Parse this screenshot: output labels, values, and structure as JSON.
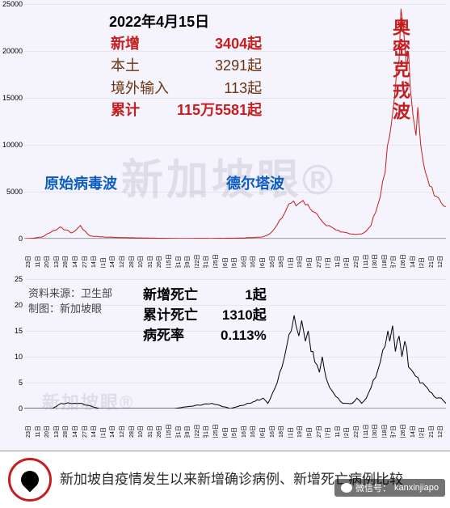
{
  "header": {
    "date": "2022年4月15日",
    "rows": [
      {
        "label": "新增",
        "value": "3404起",
        "class": "red"
      },
      {
        "label": "本土",
        "value": "3291起",
        "class": "brown"
      },
      {
        "label": "境外输入",
        "value": "113起",
        "class": "brown"
      },
      {
        "label": "累计",
        "value": "115万5581起",
        "class": "red"
      }
    ]
  },
  "deaths": {
    "rows": [
      {
        "label": "新增死亡",
        "value": "1起"
      },
      {
        "label": "累计死亡",
        "value": "1310起"
      },
      {
        "label": "病死率",
        "value": "0.113%"
      }
    ]
  },
  "source": {
    "line1": "资料来源：卫生部",
    "line2": "制图：新加坡眼"
  },
  "waves": {
    "original": "原始病毒波",
    "delta": "德尔塔波",
    "omicron": "奥密克戎波"
  },
  "watermark": "新加坡眼®",
  "footer": {
    "title": "新加坡自疫情发生以来新增确诊病例、新增死亡病例比较",
    "wechat_label": "微信号：",
    "wechat_id": "kanxinjiapo"
  },
  "top_chart": {
    "type": "line",
    "color": "#c41e1e",
    "linewidth": 1,
    "background": "#f5f3fc",
    "ylim": [
      0,
      25000
    ],
    "yticks": [
      0,
      5000,
      10000,
      15000,
      20000,
      25000
    ],
    "x_range_days": 450,
    "x_labels": [
      "1月23日",
      "2月11日",
      "2月20日",
      "3月13日",
      "3月28日",
      "4月14日",
      "4月27日",
      "5月14日",
      "6月1日",
      "6月14日",
      "7月12日",
      "7月28日",
      "8月10日",
      "8月31日",
      "9月26日",
      "10月15日",
      "11月1日",
      "11月9日",
      "11月22日",
      "12月1日",
      "12月25日",
      "1月6日",
      "2月5日",
      "2月16日",
      "3月16日",
      "4月6日",
      "4月16日",
      "5月18日",
      "6月1日",
      "6月19日",
      "7月5日",
      "7月27日",
      "8月7日",
      "8月11日",
      "9月2日",
      "9月22日",
      "10月11日",
      "10月30日",
      "11月18日",
      "12月7日",
      "12月26日",
      "1月14日",
      "2月2日",
      "2月21日",
      "3月12日",
      "3月31日"
    ],
    "data": [
      [
        0,
        0
      ],
      [
        10,
        50
      ],
      [
        20,
        200
      ],
      [
        30,
        800
      ],
      [
        40,
        1200
      ],
      [
        50,
        600
      ],
      [
        55,
        900
      ],
      [
        60,
        1400
      ],
      [
        65,
        800
      ],
      [
        70,
        300
      ],
      [
        80,
        200
      ],
      [
        90,
        150
      ],
      [
        100,
        120
      ],
      [
        110,
        100
      ],
      [
        120,
        80
      ],
      [
        130,
        60
      ],
      [
        140,
        50
      ],
      [
        150,
        40
      ],
      [
        160,
        30
      ],
      [
        170,
        25
      ],
      [
        180,
        30
      ],
      [
        190,
        35
      ],
      [
        200,
        30
      ],
      [
        210,
        40
      ],
      [
        220,
        50
      ],
      [
        230,
        60
      ],
      [
        240,
        100
      ],
      [
        250,
        150
      ],
      [
        255,
        200
      ],
      [
        260,
        400
      ],
      [
        265,
        800
      ],
      [
        270,
        1500
      ],
      [
        275,
        2200
      ],
      [
        280,
        3200
      ],
      [
        285,
        3800
      ],
      [
        290,
        3500
      ],
      [
        295,
        3900
      ],
      [
        300,
        3600
      ],
      [
        305,
        3200
      ],
      [
        310,
        2800
      ],
      [
        315,
        2200
      ],
      [
        320,
        1600
      ],
      [
        325,
        1400
      ],
      [
        330,
        1100
      ],
      [
        335,
        900
      ],
      [
        340,
        700
      ],
      [
        345,
        600
      ],
      [
        350,
        500
      ],
      [
        355,
        450
      ],
      [
        360,
        500
      ],
      [
        365,
        800
      ],
      [
        370,
        1400
      ],
      [
        375,
        2800
      ],
      [
        380,
        4500
      ],
      [
        385,
        7000
      ],
      [
        390,
        11000
      ],
      [
        395,
        15000
      ],
      [
        400,
        19000
      ],
      [
        402,
        24500
      ],
      [
        405,
        22000
      ],
      [
        408,
        18000
      ],
      [
        410,
        20000
      ],
      [
        412,
        16000
      ],
      [
        415,
        13000
      ],
      [
        418,
        11000
      ],
      [
        420,
        14000
      ],
      [
        423,
        10000
      ],
      [
        426,
        8000
      ],
      [
        430,
        6500
      ],
      [
        435,
        5500
      ],
      [
        440,
        4500
      ],
      [
        445,
        3800
      ],
      [
        450,
        3404
      ]
    ]
  },
  "bottom_chart": {
    "type": "line",
    "color": "#000000",
    "linewidth": 1,
    "background": "#f5f3fc",
    "ylim": [
      0,
      25
    ],
    "yticks": [
      0,
      5,
      10,
      15,
      20,
      25
    ],
    "x_range_days": 450,
    "x_labels": [
      "1月23日",
      "2月11日",
      "2月20日",
      "3月13日",
      "3月28日",
      "4月14日",
      "4月27日",
      "5月14日",
      "6月1日",
      "6月14日",
      "7月12日",
      "7月28日",
      "8月10日",
      "8月31日",
      "9月26日",
      "10月15日",
      "11月1日",
      "11月9日",
      "11月22日",
      "12月1日",
      "12月25日",
      "1月6日",
      "2月5日",
      "2月16日",
      "3月16日",
      "4月6日",
      "4月16日",
      "5月18日",
      "6月1日",
      "6月19日",
      "7月5日",
      "7月27日",
      "8月7日",
      "8月11日",
      "9月2日",
      "9月22日",
      "10月11日",
      "10月30日",
      "11月18日",
      "12月7日",
      "12月26日",
      "1月14日",
      "2月2日",
      "2月21日",
      "3月12日",
      "3月31日"
    ],
    "data": [
      [
        0,
        0
      ],
      [
        30,
        0
      ],
      [
        40,
        1
      ],
      [
        60,
        1
      ],
      [
        80,
        0
      ],
      [
        120,
        0
      ],
      [
        160,
        0
      ],
      [
        200,
        1
      ],
      [
        220,
        0
      ],
      [
        240,
        1
      ],
      [
        255,
        2
      ],
      [
        260,
        1
      ],
      [
        265,
        3
      ],
      [
        270,
        5
      ],
      [
        275,
        8
      ],
      [
        280,
        12
      ],
      [
        285,
        15
      ],
      [
        288,
        18
      ],
      [
        290,
        16
      ],
      [
        293,
        14
      ],
      [
        296,
        17
      ],
      [
        300,
        13
      ],
      [
        303,
        15
      ],
      [
        306,
        11
      ],
      [
        310,
        9
      ],
      [
        315,
        7
      ],
      [
        318,
        10
      ],
      [
        322,
        6
      ],
      [
        326,
        4
      ],
      [
        330,
        3
      ],
      [
        335,
        2
      ],
      [
        340,
        1
      ],
      [
        345,
        1
      ],
      [
        350,
        1
      ],
      [
        355,
        2
      ],
      [
        360,
        1
      ],
      [
        365,
        2
      ],
      [
        370,
        4
      ],
      [
        375,
        6
      ],
      [
        380,
        9
      ],
      [
        385,
        12
      ],
      [
        388,
        15
      ],
      [
        390,
        13
      ],
      [
        393,
        16
      ],
      [
        396,
        11
      ],
      [
        400,
        14
      ],
      [
        403,
        10
      ],
      [
        406,
        13
      ],
      [
        410,
        8
      ],
      [
        415,
        7
      ],
      [
        420,
        6
      ],
      [
        425,
        5
      ],
      [
        430,
        4
      ],
      [
        435,
        3
      ],
      [
        440,
        2
      ],
      [
        445,
        2
      ],
      [
        450,
        1
      ]
    ]
  }
}
